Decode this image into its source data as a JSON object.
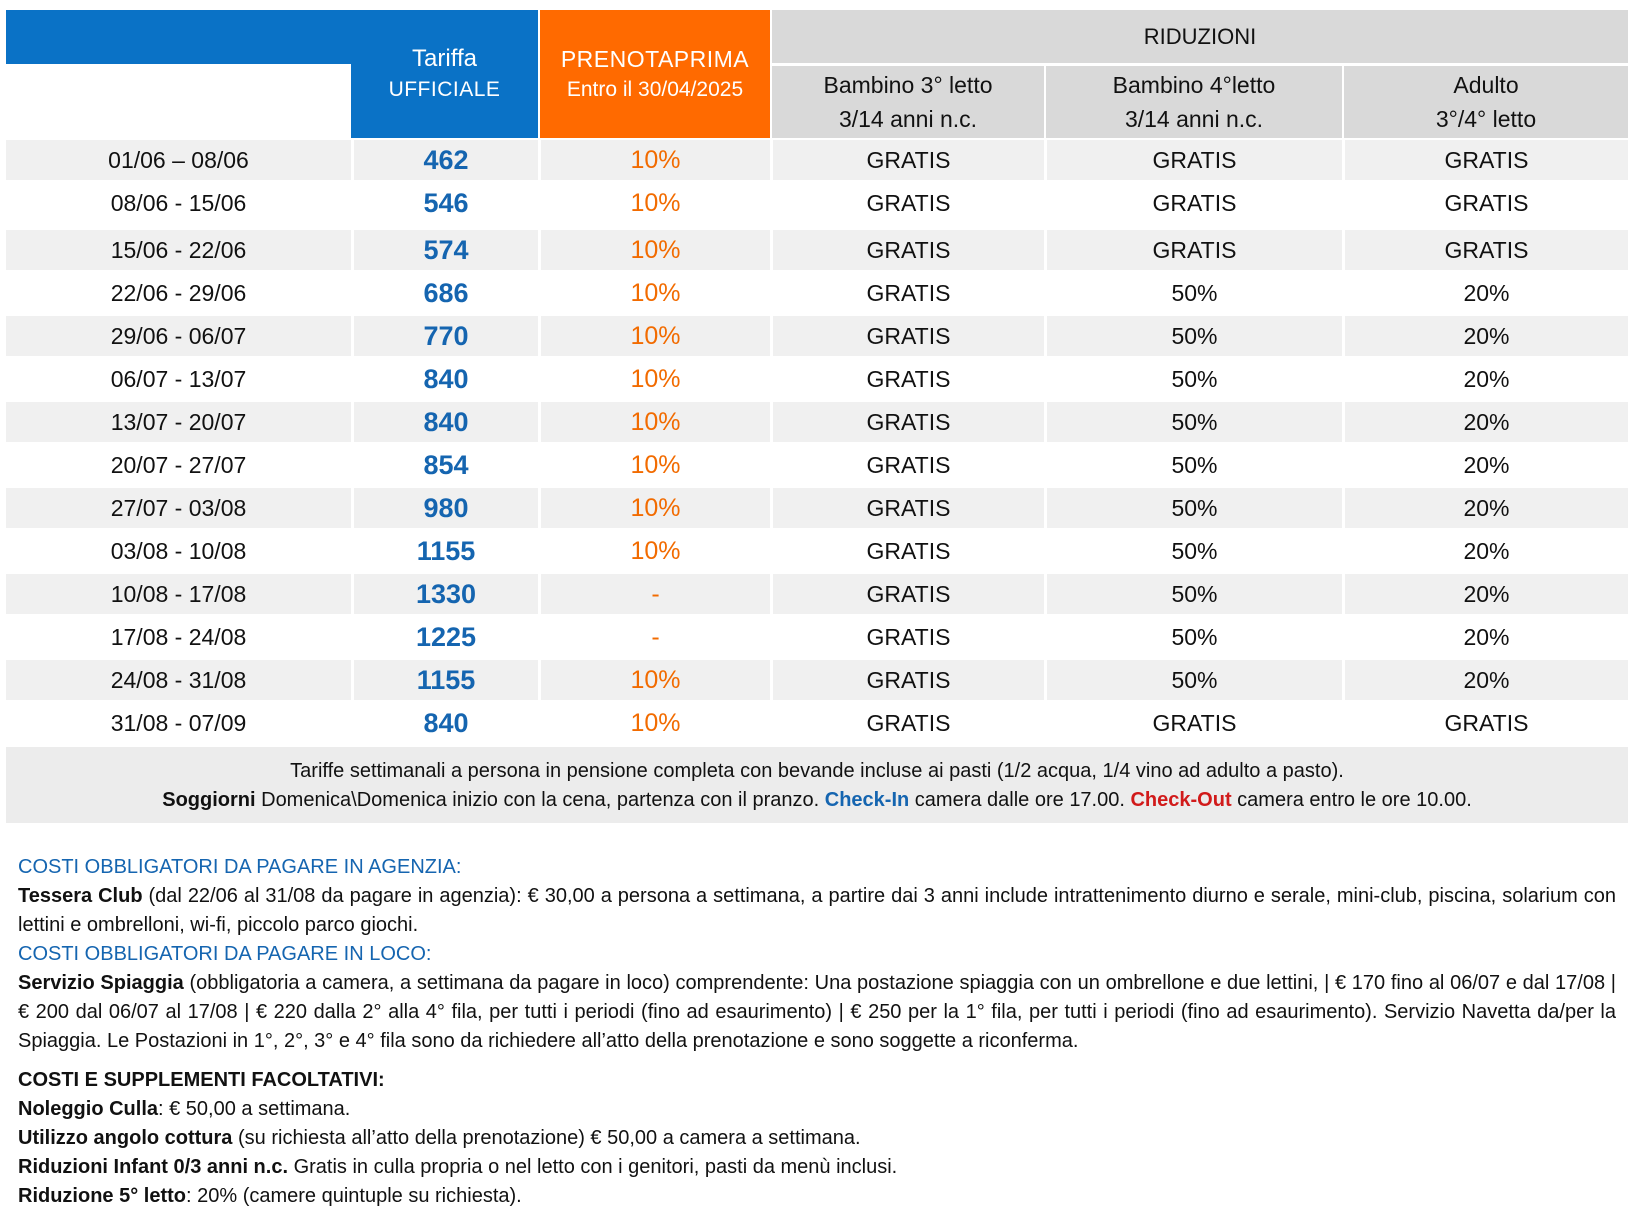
{
  "header": {
    "tariffa_line1": "Tariffa",
    "tariffa_line2": "UFFICIALE",
    "prenota_line1": "PRENOTAPRIMA",
    "prenota_line2": "Entro il 30/04/2025",
    "riduzioni": "RIDUZIONI",
    "bambino3_line1": "Bambino 3° letto",
    "bambino3_line2": "3/14 anni n.c.",
    "bambino4_line1": "Bambino 4°letto",
    "bambino4_line2": "3/14 anni n.c.",
    "adulto_line1": "Adulto",
    "adulto_line2": "3°/4° letto"
  },
  "rows": [
    {
      "period": "01/06 – 08/06",
      "price": "462",
      "prenota": "10%",
      "b3": "GRATIS",
      "b4": "GRATIS",
      "adult": "GRATIS"
    },
    {
      "period": "08/06 - 15/06",
      "price": "546",
      "prenota": "10%",
      "b3": "GRATIS",
      "b4": "GRATIS",
      "adult": "GRATIS"
    },
    {
      "period": "15/06 - 22/06",
      "price": "574",
      "prenota": "10%",
      "b3": "GRATIS",
      "b4": "GRATIS",
      "adult": "GRATIS"
    },
    {
      "period": "22/06 - 29/06",
      "price": "686",
      "prenota": "10%",
      "b3": "GRATIS",
      "b4": "50%",
      "adult": "20%"
    },
    {
      "period": "29/06 - 06/07",
      "price": "770",
      "prenota": "10%",
      "b3": "GRATIS",
      "b4": "50%",
      "adult": "20%"
    },
    {
      "period": "06/07 - 13/07",
      "price": "840",
      "prenota": "10%",
      "b3": "GRATIS",
      "b4": "50%",
      "adult": "20%"
    },
    {
      "period": "13/07 - 20/07",
      "price": "840",
      "prenota": "10%",
      "b3": "GRATIS",
      "b4": "50%",
      "adult": "20%"
    },
    {
      "period": "20/07 - 27/07",
      "price": "854",
      "prenota": "10%",
      "b3": "GRATIS",
      "b4": "50%",
      "adult": "20%"
    },
    {
      "period": "27/07 - 03/08",
      "price": "980",
      "prenota": "10%",
      "b3": "GRATIS",
      "b4": "50%",
      "adult": "20%"
    },
    {
      "period": "03/08 - 10/08",
      "price": "1155",
      "prenota": "10%",
      "b3": "GRATIS",
      "b4": "50%",
      "adult": "20%"
    },
    {
      "period": "10/08 - 17/08",
      "price": "1330",
      "prenota": "-",
      "b3": "GRATIS",
      "b4": "50%",
      "adult": "20%"
    },
    {
      "period": "17/08 - 24/08",
      "price": "1225",
      "prenota": "-",
      "b3": "GRATIS",
      "b4": "50%",
      "adult": "20%"
    },
    {
      "period": "24/08 - 31/08",
      "price": "1155",
      "prenota": "10%",
      "b3": "GRATIS",
      "b4": "50%",
      "adult": "20%"
    },
    {
      "period": "31/08 - 07/09",
      "price": "840",
      "prenota": "10%",
      "b3": "GRATIS",
      "b4": "GRATIS",
      "adult": "GRATIS"
    }
  ],
  "note": {
    "line1": "Tariffe settimanali a persona in pensione completa con bevande incluse ai pasti (1/2 acqua, 1/4 vino ad adulto a pasto).",
    "soggiorni": "Soggiorni",
    "line2a": " Domenica\\Domenica inizio con la cena, partenza con il pranzo. ",
    "checkin": "Check-In",
    "line2b": " camera dalle ore 17.00. ",
    "checkout": "Check-Out",
    "line2c": " camera entro le ore 10.00."
  },
  "costs": {
    "agenzia_title": "COSTI OBBLIGATORI DA PAGARE IN AGENZIA:",
    "tessera_label": "Tessera Club",
    "tessera_text": " (dal 22/06 al 31/08 da pagare in agenzia): € 30,00 a persona a settimana, a partire dai 3 anni include intrattenimento diurno e serale, mini-club, piscina, solarium con lettini e ombrelloni, wi-fi, piccolo parco giochi.",
    "loco_title": "COSTI OBBLIGATORI DA PAGARE IN LOCO:",
    "spiaggia_label": "Servizio Spiaggia",
    "spiaggia_text": " (obbligatoria a camera, a settimana da pagare in loco) comprendente: Una postazione spiaggia con un ombrellone e due lettini, | € 170 fino al 06/07 e dal 17/08 | € 200 dal 06/07 al 17/08 | € 220 dalla 2° alla 4° fila, per tutti i periodi (fino ad esaurimento) | € 250 per la 1° fila, per tutti i periodi (fino ad esaurimento). Servizio Navetta da/per la Spiaggia.  Le Postazioni in 1°, 2°, 3° e 4° fila sono da richiedere all’atto della prenotazione e sono soggette a riconferma.",
    "facoltativi_title": "COSTI E SUPPLEMENTI FACOLTATIVI:",
    "culla_label": "Noleggio Culla",
    "culla_text": ": € 50,00 a settimana.",
    "cottura_label": "Utilizzo angolo cottura",
    "cottura_text": " (su richiesta all’atto della prenotazione) € 50,00 a camera a settimana.",
    "infant_label": "Riduzioni Infant 0/3 anni n.c.",
    "infant_text": " Gratis in culla propria o nel letto con i genitori, pasti da menù inclusi.",
    "quinto_label": "Riduzione 5° letto",
    "quinto_text": ": 20% (camere quintuple su richiesta)."
  }
}
